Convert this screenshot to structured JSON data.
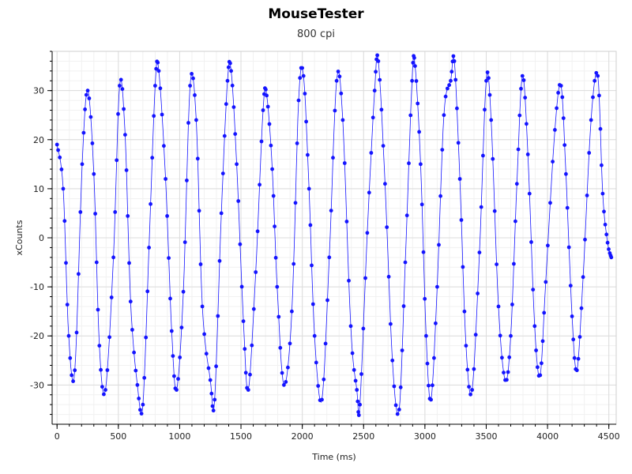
{
  "chart_data": {
    "type": "scatter",
    "title": "MouseTester",
    "subtitle": "800 cpi",
    "xlabel": "Time (ms)",
    "ylabel": "xCounts",
    "xlim": [
      -40,
      4560
    ],
    "ylim": [
      -38,
      38
    ],
    "xticks": [
      0,
      500,
      1000,
      1500,
      2000,
      2500,
      3000,
      3500,
      4000,
      4500
    ],
    "yticks": [
      -30,
      -20,
      -10,
      0,
      10,
      20,
      30
    ],
    "grid": true,
    "point_color": "#1414ff",
    "line_color": "#1414ff",
    "series": [
      {
        "points": [
          [
            0,
            19
          ],
          [
            50,
            10
          ],
          [
            95,
            -20
          ],
          [
            145,
            -27
          ],
          [
            205,
            15
          ],
          [
            250,
            30
          ],
          [
            300,
            13
          ],
          [
            345,
            -22
          ],
          [
            395,
            -31
          ],
          [
            460,
            -4
          ],
          [
            510,
            31
          ],
          [
            555,
            21
          ],
          [
            600,
            -13
          ],
          [
            655,
            -30
          ],
          [
            700,
            -34
          ],
          [
            750,
            -2
          ],
          [
            800,
            31
          ],
          [
            830,
            34
          ],
          [
            885,
            12
          ],
          [
            935,
            -19
          ],
          [
            975,
            -31
          ],
          [
            1030,
            -11
          ],
          [
            1085,
            31
          ],
          [
            1135,
            24
          ],
          [
            1185,
            -14
          ],
          [
            1250,
            -29
          ],
          [
            1285,
            -33
          ],
          [
            1340,
            5
          ],
          [
            1390,
            32
          ],
          [
            1420,
            34
          ],
          [
            1465,
            15
          ],
          [
            1520,
            -17
          ],
          [
            1560,
            -31
          ],
          [
            1620,
            -7
          ],
          [
            1680,
            26
          ],
          [
            1710,
            29
          ],
          [
            1755,
            14
          ],
          [
            1795,
            -10
          ],
          [
            1850,
            -30
          ],
          [
            1915,
            -15
          ],
          [
            1970,
            28
          ],
          [
            2010,
            33
          ],
          [
            2055,
            10
          ],
          [
            2100,
            -20
          ],
          [
            2160,
            -33
          ],
          [
            2220,
            -4
          ],
          [
            2280,
            32
          ],
          [
            2330,
            24
          ],
          [
            2395,
            -18
          ],
          [
            2445,
            -31
          ],
          [
            2470,
            -34
          ],
          [
            2530,
            1
          ],
          [
            2590,
            30
          ],
          [
            2620,
            36
          ],
          [
            2675,
            11
          ],
          [
            2735,
            -25
          ],
          [
            2790,
            -35
          ],
          [
            2840,
            -5
          ],
          [
            2895,
            32
          ],
          [
            2920,
            35
          ],
          [
            2965,
            15
          ],
          [
            3010,
            -20
          ],
          [
            3050,
            -33
          ],
          [
            3100,
            -10
          ],
          [
            3155,
            25
          ],
          [
            3210,
            32
          ],
          [
            3240,
            36
          ],
          [
            3285,
            12
          ],
          [
            3335,
            -22
          ],
          [
            3385,
            -31
          ],
          [
            3445,
            -3
          ],
          [
            3500,
            32
          ],
          [
            3540,
            24
          ],
          [
            3600,
            -14
          ],
          [
            3655,
            -29
          ],
          [
            3700,
            -20
          ],
          [
            3750,
            11
          ],
          [
            3795,
            33
          ],
          [
            3840,
            17
          ],
          [
            3895,
            -18
          ],
          [
            3940,
            -28
          ],
          [
            3985,
            -9
          ],
          [
            4060,
            22
          ],
          [
            4110,
            31
          ],
          [
            4150,
            13
          ],
          [
            4200,
            -16
          ],
          [
            4240,
            -27
          ],
          [
            4290,
            -8
          ],
          [
            4355,
            24
          ],
          [
            4410,
            33
          ],
          [
            4450,
            9
          ],
          [
            4490,
            -1
          ],
          [
            4520,
            -4
          ]
        ]
      }
    ]
  }
}
